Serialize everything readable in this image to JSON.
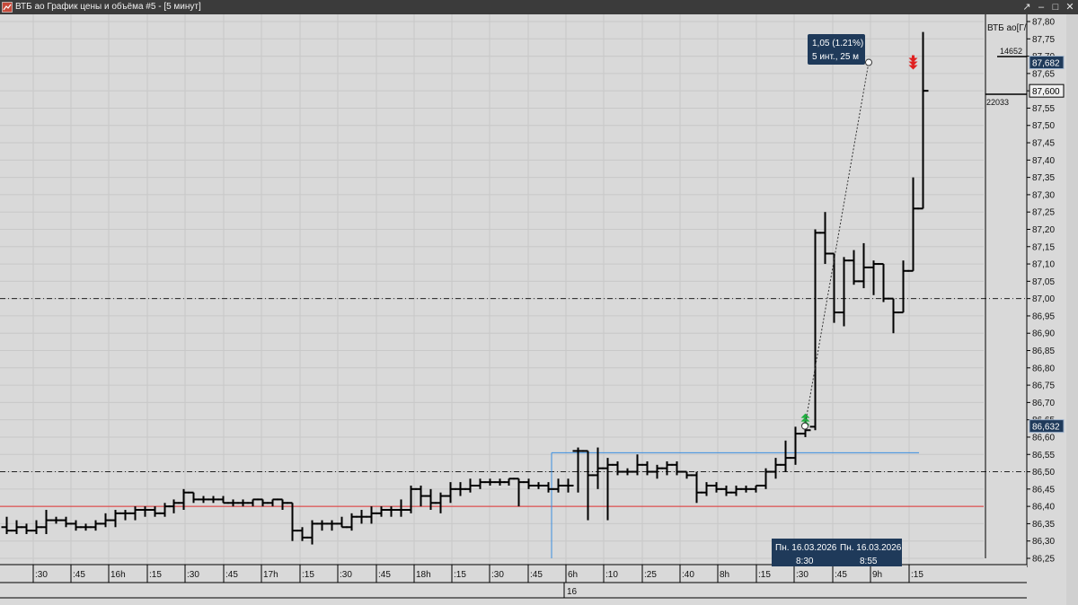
{
  "window": {
    "title": "ВТБ ао График цены и объёма #5 - [5 минут]",
    "buttons": [
      "up-icon",
      "minimize-icon",
      "maximize-icon",
      "close-icon"
    ]
  },
  "colors": {
    "background": "#d9d9d9",
    "grid": "#c8c8c8",
    "bars": "#000000",
    "title_bar": "#3b3b3b",
    "support_line": "#e03030",
    "ref_line": "#3a8ee0",
    "badge": "#1f3a5a",
    "buy_arrow": "#20b040",
    "sell_arrow": "#e02020"
  },
  "price_axis": {
    "ticks": [
      "87,80",
      "87,75",
      "87,70",
      "87,65",
      "87,60",
      "87,55",
      "87,50",
      "87,45",
      "87,40",
      "87,35",
      "87,30",
      "87,25",
      "87,20",
      "87,15",
      "87,10",
      "87,05",
      "87,00",
      "86,95",
      "86,90",
      "86,85",
      "86,80",
      "86,75",
      "86,70",
      "86,65",
      "86,60",
      "86,55",
      "86,50",
      "86,45",
      "86,40",
      "86,35",
      "86,30",
      "86,25"
    ],
    "instrument_label": "ВТБ ао[Г/",
    "volume_label_1": "14652",
    "volume_label_2": "22033",
    "price_badges": [
      {
        "value": 87.682,
        "text": "87,682"
      },
      {
        "value": 87.6,
        "text": "87,600"
      },
      {
        "value": 86.632,
        "text": "86,632"
      }
    ]
  },
  "time_axis": {
    "labels": [
      ":30",
      ":45",
      "16h",
      ":15",
      ":30",
      ":45",
      "17h",
      ":15",
      ":30",
      ":45",
      "18h",
      ":15",
      ":30",
      ":45",
      "6h",
      ":10",
      ":25",
      ":40",
      "8h",
      ":15",
      ":30",
      ":45",
      "9h",
      ":15"
    ],
    "day_label": "16"
  },
  "measure": {
    "line1": "1,05 (1.21%)",
    "line2": "5 инт., 25 м",
    "start_label": "Пн. 16.03.2026",
    "start_time": "8:30",
    "end_label": "Пн. 16.03.2026",
    "end_time": "8:55"
  },
  "chart_data": {
    "type": "bar",
    "subtype": "ohlc",
    "timeframe": "5 минут",
    "ylim": [
      86.25,
      87.8
    ],
    "y_tick_step": 0.05,
    "horizontal_lines": [
      {
        "price": 87.0,
        "style": "dash-dot"
      },
      {
        "price": 86.5,
        "style": "dash-dot"
      },
      {
        "price": 86.4,
        "style": "solid",
        "color": "#e03030"
      },
      {
        "price": 86.555,
        "style": "solid",
        "color": "#3a8ee0"
      }
    ],
    "bars": [
      {
        "o": 86.34,
        "h": 86.37,
        "l": 86.32,
        "c": 86.33
      },
      {
        "o": 86.33,
        "h": 86.36,
        "l": 86.32,
        "c": 86.34
      },
      {
        "o": 86.34,
        "h": 86.35,
        "l": 86.32,
        "c": 86.33
      },
      {
        "o": 86.33,
        "h": 86.36,
        "l": 86.32,
        "c": 86.34
      },
      {
        "o": 86.34,
        "h": 86.39,
        "l": 86.32,
        "c": 86.36
      },
      {
        "o": 86.36,
        "h": 86.37,
        "l": 86.35,
        "c": 86.36
      },
      {
        "o": 86.36,
        "h": 86.37,
        "l": 86.34,
        "c": 86.35
      },
      {
        "o": 86.35,
        "h": 86.36,
        "l": 86.33,
        "c": 86.34
      },
      {
        "o": 86.34,
        "h": 86.35,
        "l": 86.33,
        "c": 86.34
      },
      {
        "o": 86.34,
        "h": 86.36,
        "l": 86.33,
        "c": 86.35
      },
      {
        "o": 86.35,
        "h": 86.38,
        "l": 86.34,
        "c": 86.36
      },
      {
        "o": 86.36,
        "h": 86.39,
        "l": 86.34,
        "c": 86.38
      },
      {
        "o": 86.38,
        "h": 86.39,
        "l": 86.36,
        "c": 86.38
      },
      {
        "o": 86.38,
        "h": 86.4,
        "l": 86.36,
        "c": 86.39
      },
      {
        "o": 86.39,
        "h": 86.4,
        "l": 86.37,
        "c": 86.39
      },
      {
        "o": 86.39,
        "h": 86.4,
        "l": 86.37,
        "c": 86.38
      },
      {
        "o": 86.38,
        "h": 86.41,
        "l": 86.37,
        "c": 86.4
      },
      {
        "o": 86.4,
        "h": 86.42,
        "l": 86.38,
        "c": 86.41
      },
      {
        "o": 86.41,
        "h": 86.45,
        "l": 86.39,
        "c": 86.44
      },
      {
        "o": 86.44,
        "h": 86.44,
        "l": 86.41,
        "c": 86.42
      },
      {
        "o": 86.42,
        "h": 86.43,
        "l": 86.41,
        "c": 86.42
      },
      {
        "o": 86.42,
        "h": 86.43,
        "l": 86.41,
        "c": 86.42
      },
      {
        "o": 86.42,
        "h": 86.43,
        "l": 86.41,
        "c": 86.41
      },
      {
        "o": 86.41,
        "h": 86.42,
        "l": 86.4,
        "c": 86.41
      },
      {
        "o": 86.41,
        "h": 86.42,
        "l": 86.4,
        "c": 86.41
      },
      {
        "o": 86.41,
        "h": 86.42,
        "l": 86.4,
        "c": 86.42
      },
      {
        "o": 86.42,
        "h": 86.42,
        "l": 86.4,
        "c": 86.41
      },
      {
        "o": 86.41,
        "h": 86.42,
        "l": 86.4,
        "c": 86.42
      },
      {
        "o": 86.42,
        "h": 86.42,
        "l": 86.39,
        "c": 86.41
      },
      {
        "o": 86.41,
        "h": 86.41,
        "l": 86.3,
        "c": 86.33
      },
      {
        "o": 86.33,
        "h": 86.34,
        "l": 86.3,
        "c": 86.31
      },
      {
        "o": 86.31,
        "h": 86.36,
        "l": 86.29,
        "c": 86.35
      },
      {
        "o": 86.35,
        "h": 86.36,
        "l": 86.33,
        "c": 86.35
      },
      {
        "o": 86.35,
        "h": 86.36,
        "l": 86.33,
        "c": 86.35
      },
      {
        "o": 86.35,
        "h": 86.37,
        "l": 86.34,
        "c": 86.34
      },
      {
        "o": 86.34,
        "h": 86.38,
        "l": 86.33,
        "c": 86.37
      },
      {
        "o": 86.37,
        "h": 86.39,
        "l": 86.35,
        "c": 86.37
      },
      {
        "o": 86.37,
        "h": 86.4,
        "l": 86.35,
        "c": 86.38
      },
      {
        "o": 86.38,
        "h": 86.4,
        "l": 86.37,
        "c": 86.39
      },
      {
        "o": 86.39,
        "h": 86.4,
        "l": 86.37,
        "c": 86.39
      },
      {
        "o": 86.39,
        "h": 86.42,
        "l": 86.37,
        "c": 86.39
      },
      {
        "o": 86.39,
        "h": 86.46,
        "l": 86.38,
        "c": 86.45
      },
      {
        "o": 86.45,
        "h": 86.46,
        "l": 86.4,
        "c": 86.43
      },
      {
        "o": 86.43,
        "h": 86.45,
        "l": 86.39,
        "c": 86.41
      },
      {
        "o": 86.41,
        "h": 86.44,
        "l": 86.38,
        "c": 86.43
      },
      {
        "o": 86.43,
        "h": 86.47,
        "l": 86.41,
        "c": 86.45
      },
      {
        "o": 86.45,
        "h": 86.47,
        "l": 86.43,
        "c": 86.45
      },
      {
        "o": 86.45,
        "h": 86.48,
        "l": 86.44,
        "c": 86.46
      },
      {
        "o": 86.46,
        "h": 86.48,
        "l": 86.45,
        "c": 86.47
      },
      {
        "o": 86.47,
        "h": 86.48,
        "l": 86.46,
        "c": 86.47
      },
      {
        "o": 86.47,
        "h": 86.48,
        "l": 86.46,
        "c": 86.47
      },
      {
        "o": 86.47,
        "h": 86.48,
        "l": 86.46,
        "c": 86.48
      },
      {
        "o": 86.48,
        "h": 86.48,
        "l": 86.4,
        "c": 86.47
      },
      {
        "o": 86.47,
        "h": 86.48,
        "l": 86.45,
        "c": 86.46
      },
      {
        "o": 86.46,
        "h": 86.47,
        "l": 86.45,
        "c": 86.46
      },
      {
        "o": 86.46,
        "h": 86.47,
        "l": 86.44,
        "c": 86.45
      },
      {
        "o": 86.45,
        "h": 86.48,
        "l": 86.44,
        "c": 86.46
      },
      {
        "o": 86.46,
        "h": 86.48,
        "l": 86.44,
        "c": 86.46
      },
      {
        "o": 86.56,
        "h": 86.57,
        "l": 86.44,
        "c": 86.56
      },
      {
        "o": 86.56,
        "h": 86.56,
        "l": 86.36,
        "c": 86.49
      },
      {
        "o": 86.49,
        "h": 86.57,
        "l": 86.45,
        "c": 86.51
      },
      {
        "o": 86.51,
        "h": 86.54,
        "l": 86.36,
        "c": 86.52
      },
      {
        "o": 86.52,
        "h": 86.53,
        "l": 86.49,
        "c": 86.5
      },
      {
        "o": 86.5,
        "h": 86.51,
        "l": 86.49,
        "c": 86.5
      },
      {
        "o": 86.5,
        "h": 86.55,
        "l": 86.49,
        "c": 86.52
      },
      {
        "o": 86.52,
        "h": 86.53,
        "l": 86.49,
        "c": 86.5
      },
      {
        "o": 86.5,
        "h": 86.52,
        "l": 86.48,
        "c": 86.51
      },
      {
        "o": 86.51,
        "h": 86.53,
        "l": 86.49,
        "c": 86.52
      },
      {
        "o": 86.52,
        "h": 86.53,
        "l": 86.49,
        "c": 86.5
      },
      {
        "o": 86.5,
        "h": 86.5,
        "l": 86.48,
        "c": 86.49
      },
      {
        "o": 86.49,
        "h": 86.5,
        "l": 86.41,
        "c": 86.44
      },
      {
        "o": 86.44,
        "h": 86.47,
        "l": 86.43,
        "c": 86.46
      },
      {
        "o": 86.46,
        "h": 86.47,
        "l": 86.44,
        "c": 86.45
      },
      {
        "o": 86.45,
        "h": 86.46,
        "l": 86.43,
        "c": 86.44
      },
      {
        "o": 86.44,
        "h": 86.46,
        "l": 86.43,
        "c": 86.45
      },
      {
        "o": 86.45,
        "h": 86.46,
        "l": 86.44,
        "c": 86.45
      },
      {
        "o": 86.45,
        "h": 86.46,
        "l": 86.44,
        "c": 86.46
      },
      {
        "o": 86.46,
        "h": 86.51,
        "l": 86.45,
        "c": 86.5
      },
      {
        "o": 86.5,
        "h": 86.54,
        "l": 86.48,
        "c": 86.52
      },
      {
        "o": 86.52,
        "h": 86.59,
        "l": 86.5,
        "c": 86.54
      },
      {
        "o": 86.54,
        "h": 86.63,
        "l": 86.52,
        "c": 86.61
      },
      {
        "o": 86.61,
        "h": 86.64,
        "l": 86.6,
        "c": 86.62
      },
      {
        "o": 86.63,
        "h": 87.2,
        "l": 86.62,
        "c": 87.19
      },
      {
        "o": 87.19,
        "h": 87.25,
        "l": 87.1,
        "c": 87.13
      },
      {
        "o": 87.13,
        "h": 87.13,
        "l": 86.93,
        "c": 86.96
      },
      {
        "o": 86.96,
        "h": 87.12,
        "l": 86.92,
        "c": 87.11
      },
      {
        "o": 87.11,
        "h": 87.14,
        "l": 87.04,
        "c": 87.05
      },
      {
        "o": 87.05,
        "h": 87.16,
        "l": 87.03,
        "c": 87.09
      },
      {
        "o": 87.09,
        "h": 87.11,
        "l": 87.01,
        "c": 87.1
      },
      {
        "o": 87.1,
        "h": 87.1,
        "l": 86.99,
        "c": 87.0
      },
      {
        "o": 87.0,
        "h": 87.0,
        "l": 86.9,
        "c": 86.96
      },
      {
        "o": 86.96,
        "h": 87.11,
        "l": 86.96,
        "c": 87.08
      },
      {
        "o": 87.08,
        "h": 87.35,
        "l": 87.08,
        "c": 87.26
      },
      {
        "o": 87.26,
        "h": 87.77,
        "l": 87.26,
        "c": 87.6
      }
    ],
    "signals": [
      {
        "type": "buy",
        "bar_index": 81,
        "price": 86.632
      },
      {
        "type": "sell",
        "bar_index": 92,
        "price": 87.682
      }
    ]
  }
}
